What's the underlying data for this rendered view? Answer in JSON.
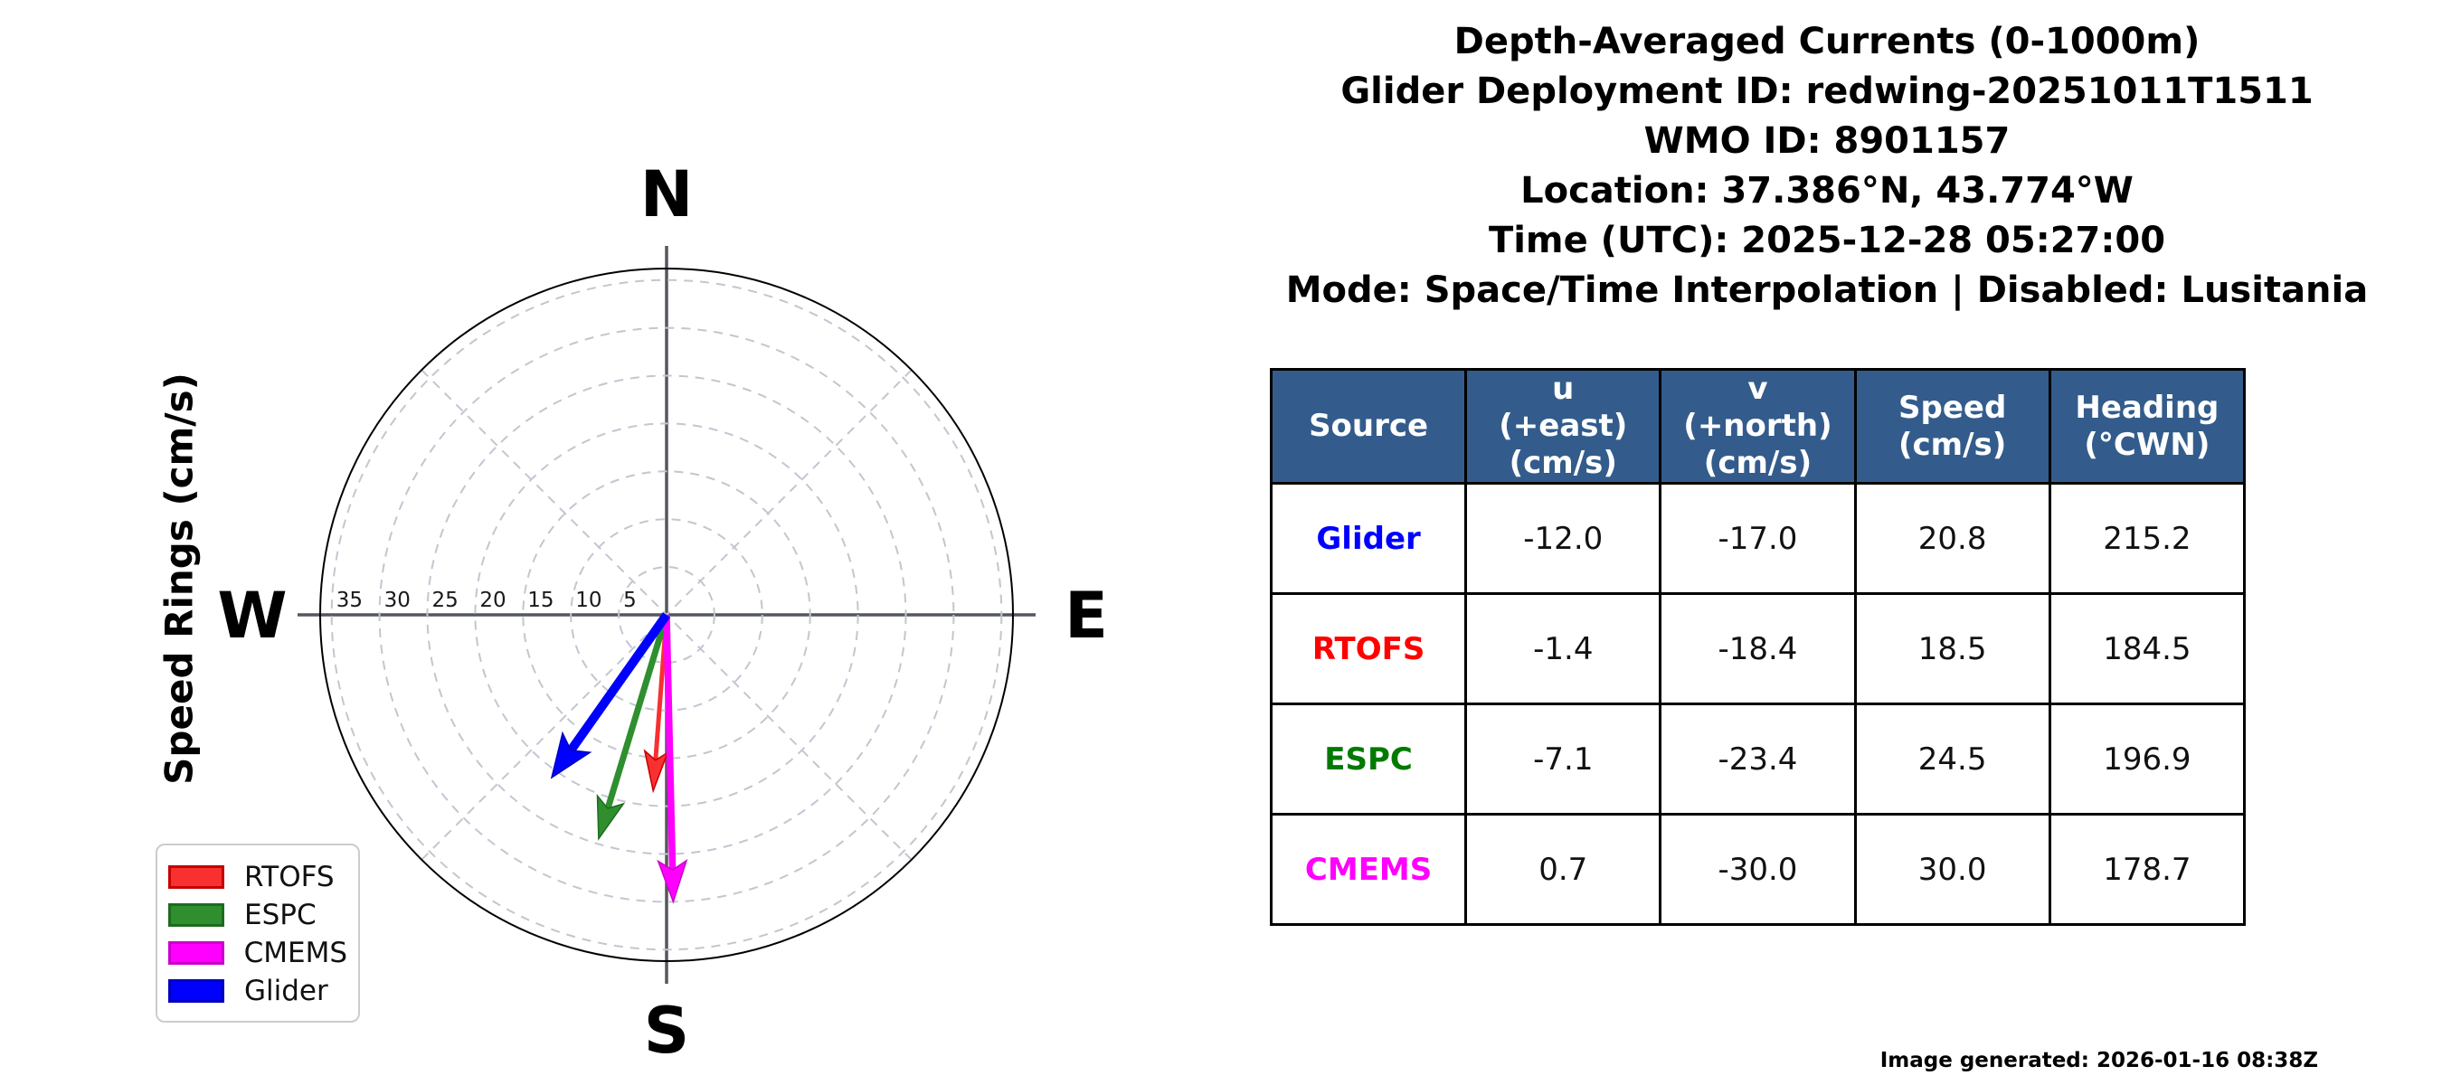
{
  "title_lines": [
    "Depth-Averaged Currents (0-1000m)",
    "Glider Deployment ID: redwing-20251011T1511",
    "WMO ID: 8901157",
    "Location: 37.386°N, 43.774°W",
    "Time (UTC): 2025-12-28 05:27:00",
    "Mode: Space/Time Interpolation | Disabled: Lusitania"
  ],
  "generated_note": "Image generated: 2026-01-16 08:38Z",
  "table": {
    "header_bg": "#335C8C",
    "header_fg": "#FFFFFF",
    "headers": [
      "Source",
      "u\n(+east)\n(cm/s)",
      "v\n(+north)\n(cm/s)",
      "Speed\n(cm/s)",
      "Heading\n(°CWN)"
    ],
    "rows": [
      {
        "source": "Glider",
        "color": "#0000FF",
        "u": "-12.0",
        "v": "-17.0",
        "speed": "20.8",
        "heading": "215.2"
      },
      {
        "source": "RTOFS",
        "color": "#FF0000",
        "u": "-1.4",
        "v": "-18.4",
        "speed": "18.5",
        "heading": "184.5"
      },
      {
        "source": "ESPC",
        "color": "#007A00",
        "u": "-7.1",
        "v": "-23.4",
        "speed": "24.5",
        "heading": "196.9"
      },
      {
        "source": "CMEMS",
        "color": "#FF00FF",
        "u": "0.7",
        "v": "-30.0",
        "speed": "30.0",
        "heading": "178.7"
      }
    ]
  },
  "chart_data": {
    "type": "scatter",
    "subtype": "compass-quiver-polar",
    "axis_label": "Speed Rings (cm/s)",
    "units": "cm/s",
    "compass_labels": {
      "north": "N",
      "east": "E",
      "south": "S",
      "west": "W"
    },
    "ring_values": [
      5,
      10,
      15,
      20,
      25,
      30,
      35
    ],
    "r_max": 36.2,
    "grid": {
      "rings_dashed": true,
      "diagonal_spokes_deg": [
        45,
        135,
        225,
        315
      ],
      "grid_color": "#c3c6d1",
      "axis_cross_color": "#54575e"
    },
    "vectors": [
      {
        "name": "RTOFS",
        "u": -1.4,
        "v": -18.4,
        "speed": 18.5,
        "heading_cwn": 184.5,
        "color": "#F83030",
        "edge": "#C40000",
        "width": 5
      },
      {
        "name": "ESPC",
        "u": -7.1,
        "v": -23.4,
        "speed": 24.5,
        "heading_cwn": 196.9,
        "color": "#2F8F2F",
        "edge": "#1D6B1D",
        "width": 7
      },
      {
        "name": "CMEMS",
        "u": 0.7,
        "v": -30.0,
        "speed": 30.0,
        "heading_cwn": 178.7,
        "color": "#FF00FF",
        "edge": "#CC00CC",
        "width": 7.5
      },
      {
        "name": "Glider",
        "u": -12.0,
        "v": -17.0,
        "speed": 20.8,
        "heading_cwn": 215.2,
        "color": "#0000FF",
        "edge": "#0000C0",
        "width": 10
      }
    ],
    "legend": {
      "position": "lower left",
      "entries": [
        {
          "label": "RTOFS",
          "color": "#F83030",
          "border": "#C40000"
        },
        {
          "label": "ESPC",
          "color": "#2F8F2F",
          "border": "#1D6B1D"
        },
        {
          "label": "CMEMS",
          "color": "#FF00FF",
          "border": "#CC00CC"
        },
        {
          "label": "Glider",
          "color": "#0000FF",
          "border": "#0000C0"
        }
      ]
    }
  }
}
